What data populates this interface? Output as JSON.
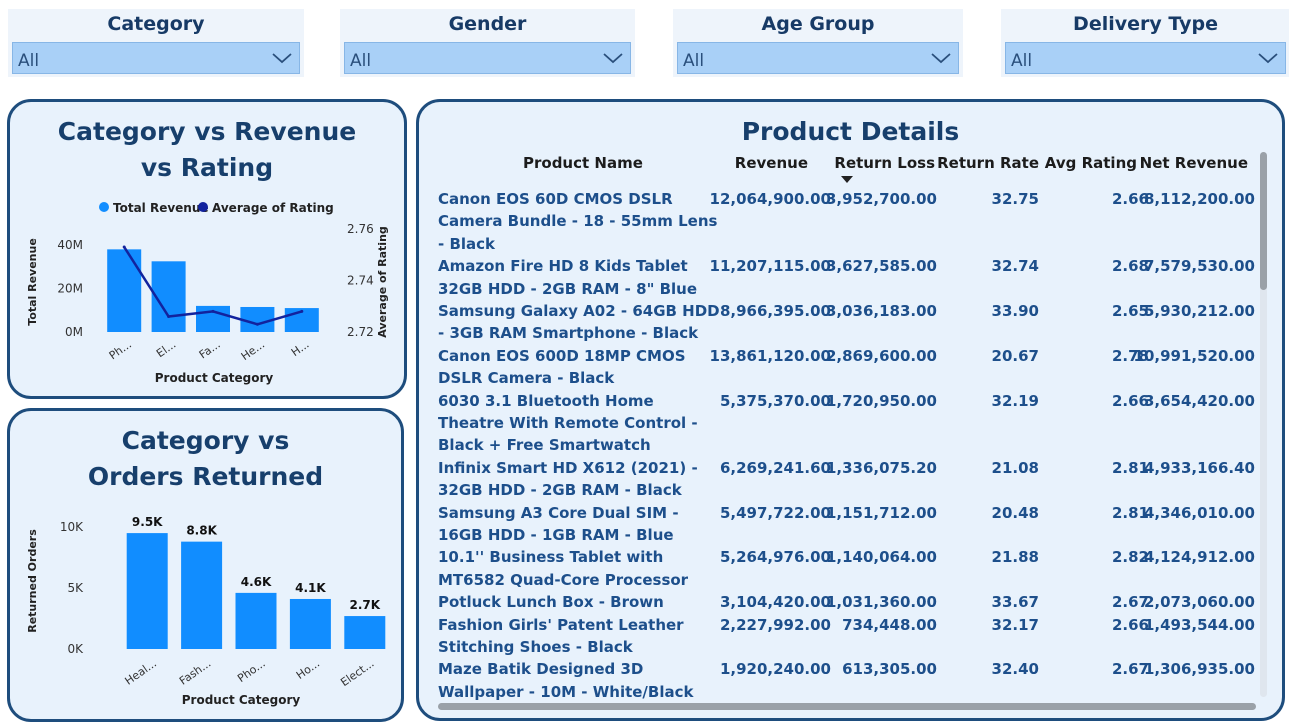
{
  "slicers": [
    {
      "title": "Category",
      "value": "All"
    },
    {
      "title": "Gender",
      "value": "All"
    },
    {
      "title": "Age Group",
      "value": "All"
    },
    {
      "title": "Delivery Type",
      "value": "All"
    }
  ],
  "icons": {
    "dropdown": "chevron-down-icon",
    "sort": "sort-descending-icon",
    "legend_marker": "circle-marker-icon"
  },
  "colors": {
    "bar": "#118dff",
    "line": "#12239e",
    "panel_bg": "#e8f2fc",
    "panel_border": "#1e4d7d",
    "title": "#173f6c",
    "table_text": "#1d4f8b"
  },
  "chart_data": [
    {
      "type": "bar",
      "title": "Category vs Revenue vs Rating",
      "legend": [
        "Total Revenue",
        "Average of Rating"
      ],
      "categories": [
        "Ph...",
        "El...",
        "Fa...",
        "He...",
        "H..."
      ],
      "series": [
        {
          "name": "Total Revenue",
          "type": "bar",
          "axis": "left",
          "values": [
            38000000,
            32500000,
            12000000,
            11500000,
            11000000
          ]
        },
        {
          "name": "Average of Rating",
          "type": "line",
          "axis": "right",
          "values": [
            2.753,
            2.726,
            2.728,
            2.723,
            2.728
          ]
        }
      ],
      "xlabel": "Product Category",
      "ylabel": "Total Revenue",
      "y2label": "Average of Rating",
      "ylim": [
        0,
        50000000
      ],
      "yticks": [
        {
          "v": 0,
          "label": "0M"
        },
        {
          "v": 20000000,
          "label": "20M"
        },
        {
          "v": 40000000,
          "label": "40M"
        }
      ],
      "y2lim": [
        2.72,
        2.76
      ],
      "y2ticks": [
        {
          "v": 2.72,
          "label": "2.72"
        },
        {
          "v": 2.74,
          "label": "2.74"
        },
        {
          "v": 2.76,
          "label": "2.76"
        }
      ],
      "legend_position": "top"
    },
    {
      "type": "bar",
      "title": "Category vs Orders Returned",
      "categories": [
        "Heal...",
        "Fash...",
        "Pho...",
        "Ho...",
        "Elect..."
      ],
      "values": [
        9500,
        8800,
        4600,
        4100,
        2700
      ],
      "data_labels": [
        "9.5K",
        "8.8K",
        "4.6K",
        "4.1K",
        "2.7K"
      ],
      "xlabel": "Product Category",
      "ylabel": "Returned Orders",
      "ylim": [
        0,
        10000
      ],
      "yticks": [
        {
          "v": 0,
          "label": "0K"
        },
        {
          "v": 5000,
          "label": "5K"
        },
        {
          "v": 10000,
          "label": "10K"
        }
      ]
    },
    {
      "type": "table",
      "title": "Product Details",
      "sorted_column": "Return Loss",
      "columns": [
        "Product Name",
        "Revenue",
        "Return Loss",
        "Return Rate",
        "Avg Rating",
        "Net Revenue"
      ],
      "rows": [
        [
          "Canon EOS 60D CMOS DSLR Camera Bundle - 18 - 55mm Lens - Black",
          "12,064,900.00",
          "3,952,700.00",
          "32.75",
          "2.66",
          "8,112,200.00"
        ],
        [
          "Amazon Fire HD 8 Kids Tablet 32GB HDD - 2GB RAM - 8\" Blue",
          "11,207,115.00",
          "3,627,585.00",
          "32.74",
          "2.68",
          "7,579,530.00"
        ],
        [
          "Samsung Galaxy A02 - 64GB HDD - 3GB RAM Smartphone - Black",
          "8,966,395.00",
          "3,036,183.00",
          "33.90",
          "2.65",
          "5,930,212.00"
        ],
        [
          "Canon EOS 600D 18MP CMOS DSLR Camera - Black",
          "13,861,120.00",
          "2,869,600.00",
          "20.67",
          "2.78",
          "10,991,520.00"
        ],
        [
          "6030 3.1 Bluetooth Home Theatre With Remote Control - Black + Free Smartwatch",
          "5,375,370.00",
          "1,720,950.00",
          "32.19",
          "2.66",
          "3,654,420.00"
        ],
        [
          "Infinix Smart HD X612 (2021) - 32GB HDD - 2GB RAM - Black",
          "6,269,241.60",
          "1,336,075.20",
          "21.08",
          "2.81",
          "4,933,166.40"
        ],
        [
          "Samsung A3 Core Dual SIM - 16GB HDD - 1GB RAM - Blue",
          "5,497,722.00",
          "1,151,712.00",
          "20.48",
          "2.81",
          "4,346,010.00"
        ],
        [
          "10.1'' Business Tablet with MT6582 Quad-Core Processor",
          "5,264,976.00",
          "1,140,064.00",
          "21.88",
          "2.82",
          "4,124,912.00"
        ],
        [
          "Potluck Lunch Box - Brown",
          "3,104,420.00",
          "1,031,360.00",
          "33.67",
          "2.67",
          "2,073,060.00"
        ],
        [
          "Fashion Girls' Patent Leather Stitching Shoes - Black",
          "2,227,992.00",
          "734,448.00",
          "32.17",
          "2.66",
          "1,493,544.00"
        ],
        [
          "Maze Batik Designed 3D Wallpaper - 10M - White/Black",
          "1,920,240.00",
          "613,305.00",
          "32.40",
          "2.67",
          "1,306,935.00"
        ]
      ]
    }
  ]
}
